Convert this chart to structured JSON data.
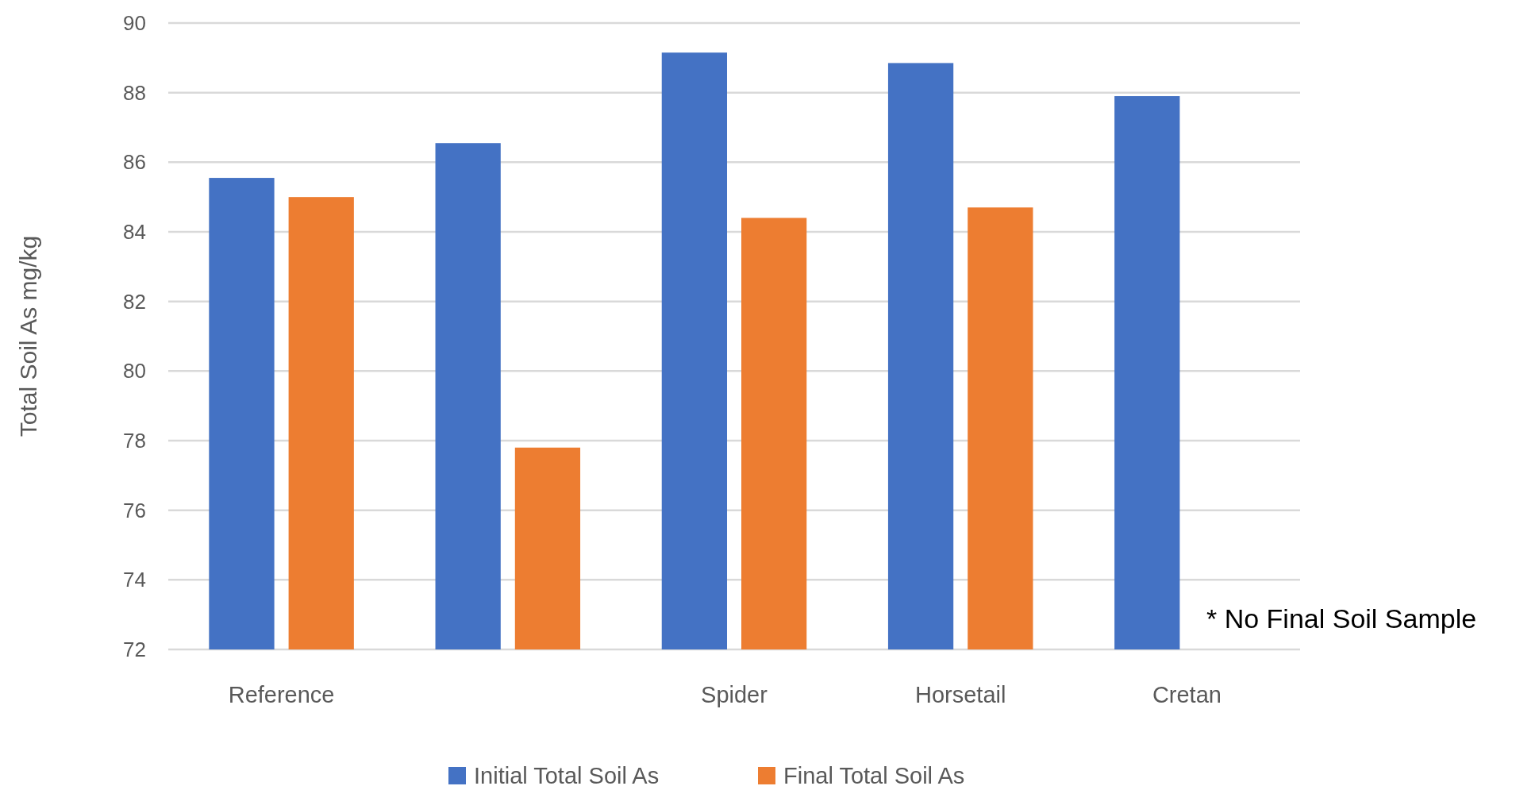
{
  "chart_data": {
    "type": "bar",
    "ylabel": "Total Soil As mg/kg",
    "categories": [
      "Reference",
      null,
      "Spider",
      "Horsetail",
      "Cretan"
    ],
    "series": [
      {
        "name": "Initial Total Soil As",
        "color": "#4472c4",
        "values": [
          85.55,
          86.55,
          89.15,
          88.85,
          87.9
        ]
      },
      {
        "name": "Final Total Soil As",
        "color": "#ed7d31",
        "values": [
          85.0,
          77.8,
          84.4,
          84.7,
          null
        ]
      }
    ],
    "ylim": [
      72,
      90
    ],
    "yticks": [
      72,
      74,
      76,
      78,
      80,
      82,
      84,
      86,
      88,
      90
    ],
    "grid": "y",
    "legend": "bottom",
    "annotations": [
      "* No Final Soil Sample"
    ]
  }
}
